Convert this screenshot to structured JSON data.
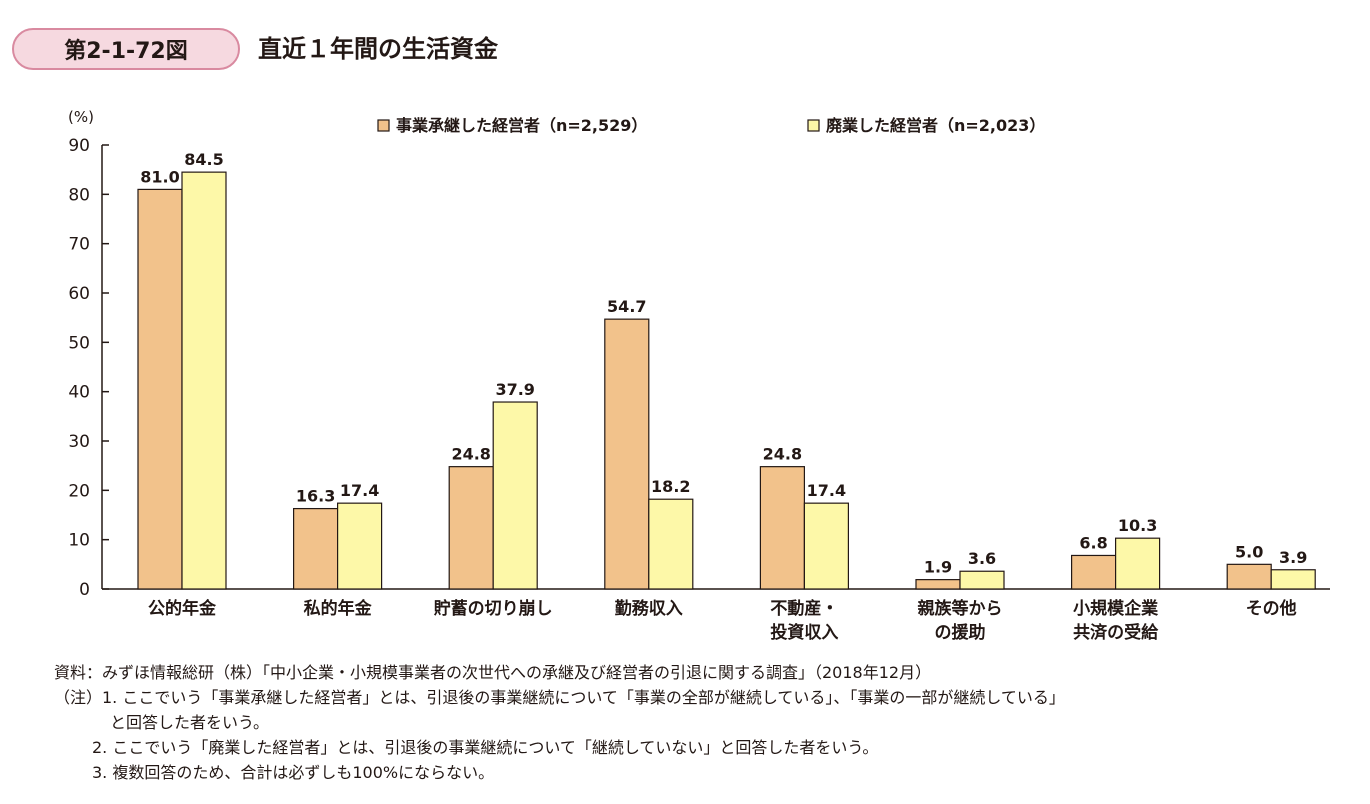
{
  "figure": {
    "badge": "第2-1-72図",
    "title": "直近１年間の生活資金"
  },
  "colors": {
    "series1": "#f2c28b",
    "series2": "#fdf8a8",
    "stroke": "#231815"
  },
  "chart_data": {
    "type": "bar",
    "title": "",
    "ylabel": "(%)",
    "xlabel": "",
    "ylim": [
      0,
      90
    ],
    "yticks": [
      0,
      10,
      20,
      30,
      40,
      50,
      60,
      70,
      80,
      90
    ],
    "grid": false,
    "legend_position": "top",
    "categories": [
      [
        "公的年金"
      ],
      [
        "私的年金"
      ],
      [
        "貯蓄の切り崩し"
      ],
      [
        "勤務収入"
      ],
      [
        "不動産・",
        "投資収入"
      ],
      [
        "親族等から",
        "の援助"
      ],
      [
        "小規模企業",
        "共済の受給"
      ],
      [
        "その他"
      ]
    ],
    "series": [
      {
        "name": "事業承継した経営者（n=2,529）",
        "values": [
          81.0,
          16.3,
          24.8,
          54.7,
          24.8,
          1.9,
          6.8,
          5.0
        ],
        "labels": [
          "81.0",
          "16.3",
          "24.8",
          "54.7",
          "24.8",
          "1.9",
          "6.8",
          "5.0"
        ]
      },
      {
        "name": "廃業した経営者（n=2,023）",
        "values": [
          84.5,
          17.4,
          37.9,
          18.2,
          17.4,
          3.6,
          10.3,
          3.9
        ],
        "labels": [
          "84.5",
          "17.4",
          "37.9",
          "18.2",
          "17.4",
          "3.6",
          "10.3",
          "3.9"
        ]
      }
    ]
  },
  "notes": {
    "source": "資料：みずほ情報総研（株）「中小企業・小規模事業者の次世代への承継及び経営者の引退に関する調査」（2018年12月）",
    "note1a": "（注）1. ここでいう「事業承継した経営者」とは、引退後の事業継続について「事業の全部が継続している」、「事業の一部が継続している」",
    "note1b": "と回答した者をいう。",
    "note2": "2. ここでいう「廃業した経営者」とは、引退後の事業継続について「継続していない」と回答した者をいう。",
    "note3": "3. 複数回答のため、合計は必ずしも100%にならない。"
  }
}
